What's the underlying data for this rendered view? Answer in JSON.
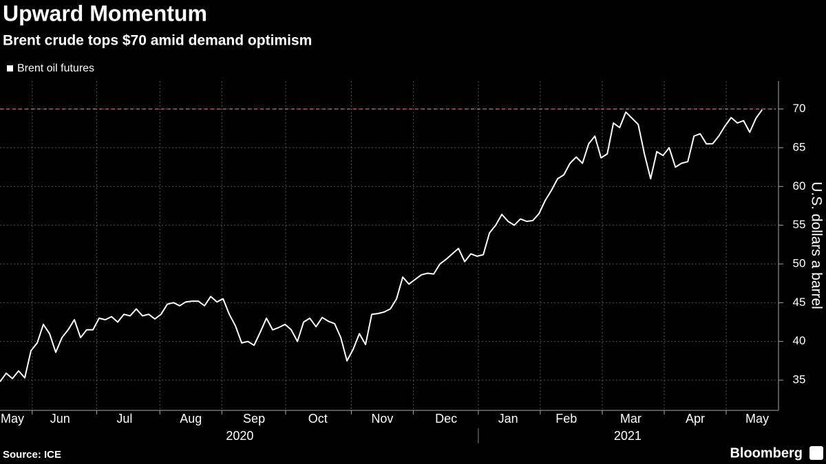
{
  "chart_data": {
    "type": "line",
    "title": "Upward Momentum",
    "subtitle": "Brent crude tops $70 amid demand optimism",
    "source": "Source: ICE",
    "brand": "Bloomberg",
    "ylabel": "U.S. dollars a barrel",
    "series": [
      {
        "name": "Brent oil futures",
        "color": "#ffffff",
        "values": [
          34.8,
          35.9,
          35.2,
          36.2,
          35.3,
          38.8,
          39.8,
          42.2,
          41.0,
          38.6,
          40.5,
          41.5,
          42.8,
          40.5,
          41.5,
          41.5,
          43,
          42.8,
          43.2,
          42.5,
          43.5,
          43.3,
          44.2,
          43.3,
          43.5,
          42.9,
          43.5,
          44.8,
          45,
          44.6,
          45.1,
          45.2,
          45.2,
          44.6,
          45.8,
          45.1,
          45.5,
          43.5,
          42,
          39.8,
          40,
          39.5,
          41.2,
          43,
          41.5,
          41.8,
          42.2,
          41.5,
          40,
          42.5,
          43,
          41.9,
          43.1,
          42.6,
          42.3,
          40.5,
          37.5,
          39,
          41,
          39.6,
          43.5,
          43.6,
          43.8,
          44.2,
          45.5,
          48.3,
          47.4,
          48,
          48.6,
          48.8,
          48.7,
          50,
          50.6,
          51.3,
          52,
          50.3,
          51.3,
          51,
          51.2,
          54,
          55,
          56.4,
          55.5,
          55,
          55.8,
          55.5,
          55.6,
          56.5,
          58.2,
          59.5,
          61,
          61.5,
          63,
          63.8,
          63,
          65.5,
          66.5,
          63.7,
          64.2,
          68.2,
          67.6,
          69.6,
          68.8,
          68,
          64.2,
          61,
          64.5,
          64,
          65,
          62.5,
          63,
          63.2,
          66.5,
          66.8,
          65.5,
          65.5,
          66.5,
          67.8,
          68.9,
          68.2,
          68.5,
          67,
          68.8,
          69.9
        ]
      }
    ],
    "reference_line": {
      "value": 70,
      "color": "#e8867a"
    },
    "xlim": [
      0,
      125.2
    ],
    "xticks": [
      {
        "value": 2,
        "label": "May"
      },
      {
        "value": 9.7,
        "label": "Jun"
      },
      {
        "value": 20.1,
        "label": "Jul"
      },
      {
        "value": 30.8,
        "label": "Aug"
      },
      {
        "value": 41,
        "label": "Sep"
      },
      {
        "value": 51.3,
        "label": "Oct"
      },
      {
        "value": 61.7,
        "label": "Nov"
      },
      {
        "value": 72,
        "label": "Dec"
      },
      {
        "value": 82,
        "label": "Jan"
      },
      {
        "value": 91.4,
        "label": "Feb"
      },
      {
        "value": 101.8,
        "label": "Mar"
      },
      {
        "value": 112.2,
        "label": "Apr"
      },
      {
        "value": 122.2,
        "label": "May"
      }
    ],
    "xgrid": [
      5.2,
      15.6,
      25.8,
      35.8,
      46.1,
      56.7,
      66.7,
      77.2,
      87.2,
      97.2,
      107.2,
      117.2
    ],
    "years": [
      {
        "value": 38.7,
        "label": "2020"
      },
      {
        "value": 101.3,
        "label": "2021"
      }
    ],
    "year_divider": 77.2,
    "ylim": [
      31.1,
      73.6
    ],
    "yticks": [
      35,
      40,
      45,
      50,
      55,
      60,
      65,
      70
    ],
    "grid": true,
    "legend": "top-left"
  }
}
